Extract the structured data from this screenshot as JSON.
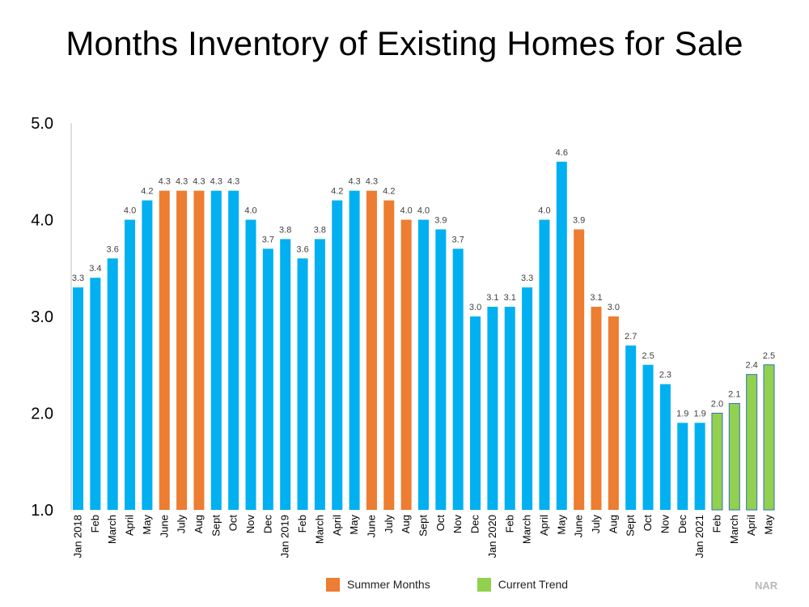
{
  "chart_data": {
    "type": "bar",
    "title": "Months Inventory of Existing Homes for Sale",
    "ylim": [
      1.0,
      5.0
    ],
    "yticks": [
      "1.0",
      "2.0",
      "3.0",
      "4.0",
      "5.0"
    ],
    "grid": false,
    "legend_position": "bottom-center",
    "categories": [
      "Jan 2018",
      "Feb",
      "March",
      "April",
      "May",
      "June",
      "July",
      "Aug",
      "Sept",
      "Oct",
      "Nov",
      "Dec",
      "Jan 2019",
      "Feb",
      "March",
      "April",
      "May",
      "June",
      "July",
      "Aug",
      "Sept",
      "Oct",
      "Nov",
      "Dec",
      "Jan 2020",
      "Feb",
      "March",
      "April",
      "May",
      "June",
      "July",
      "Aug",
      "Sept",
      "Oct",
      "Nov",
      "Dec",
      "Jan 2021",
      "Feb",
      "March",
      "April",
      "May"
    ],
    "values": [
      3.3,
      3.4,
      3.6,
      4.0,
      4.2,
      4.3,
      4.3,
      4.3,
      4.3,
      4.3,
      4.0,
      3.7,
      3.8,
      3.6,
      3.8,
      4.2,
      4.3,
      4.3,
      4.2,
      4.0,
      4.0,
      3.9,
      3.7,
      3.0,
      3.1,
      3.1,
      3.3,
      4.0,
      4.6,
      3.9,
      3.1,
      3.0,
      2.7,
      2.5,
      2.3,
      1.9,
      1.9,
      2.0,
      2.1,
      2.4,
      2.5
    ],
    "data_labels": [
      "3.3",
      "3.4",
      "3.6",
      "4.0",
      "4.2",
      "4.3",
      "4.3",
      "4.3",
      "4.3",
      "4.3",
      "4.0",
      "3.7",
      "3.8",
      "3.6",
      "3.8",
      "4.2",
      "4.3",
      "4.3",
      "4.2",
      "4.0",
      "4.0",
      "3.9",
      "3.7",
      "3.0",
      "3.1",
      "3.1",
      "3.3",
      "4.0",
      "4.6",
      "3.9",
      "3.1",
      "3.0",
      "2.7",
      "2.5",
      "2.3",
      "1.9",
      "1.9",
      "2.0",
      "2.1",
      "2.4",
      "2.5"
    ],
    "groups": [
      "default",
      "default",
      "default",
      "default",
      "default",
      "summer",
      "summer",
      "summer",
      "default",
      "default",
      "default",
      "default",
      "default",
      "default",
      "default",
      "default",
      "default",
      "summer",
      "summer",
      "summer",
      "default",
      "default",
      "default",
      "default",
      "default",
      "default",
      "default",
      "default",
      "default",
      "summer",
      "summer",
      "summer",
      "default",
      "default",
      "default",
      "default",
      "default",
      "current",
      "current",
      "current",
      "current"
    ],
    "colors": {
      "default": "#00b0f0",
      "summer": "#ed7d31",
      "current": "#92d050",
      "current_outline": "#2e75b6"
    },
    "legend": [
      {
        "name": "Summer Months",
        "group": "summer"
      },
      {
        "name": "Current Trend",
        "group": "current"
      }
    ],
    "source": "NAR"
  }
}
